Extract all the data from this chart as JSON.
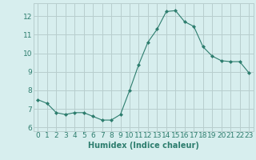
{
  "x": [
    0,
    1,
    2,
    3,
    4,
    5,
    6,
    7,
    8,
    9,
    10,
    11,
    12,
    13,
    14,
    15,
    16,
    17,
    18,
    19,
    20,
    21,
    22,
    23
  ],
  "y": [
    7.5,
    7.3,
    6.8,
    6.7,
    6.8,
    6.8,
    6.6,
    6.4,
    6.4,
    6.7,
    8.0,
    9.4,
    10.6,
    11.3,
    12.25,
    12.3,
    11.7,
    11.45,
    10.35,
    9.85,
    9.6,
    9.55,
    9.55,
    8.95
  ],
  "line_color": "#2d7d6e",
  "marker": "D",
  "marker_size": 2.0,
  "bg_color": "#d7eeee",
  "grid_color": "#b8cece",
  "xlabel": "Humidex (Indice chaleur)",
  "xlim": [
    -0.5,
    23.5
  ],
  "ylim": [
    5.8,
    12.7
  ],
  "yticks": [
    6,
    7,
    8,
    9,
    10,
    11,
    12
  ],
  "xticks": [
    0,
    1,
    2,
    3,
    4,
    5,
    6,
    7,
    8,
    9,
    10,
    11,
    12,
    13,
    14,
    15,
    16,
    17,
    18,
    19,
    20,
    21,
    22,
    23
  ],
  "tick_color": "#2d7d6e",
  "label_color": "#2d7d6e",
  "xlabel_fontsize": 7,
  "tick_fontsize": 6.5
}
